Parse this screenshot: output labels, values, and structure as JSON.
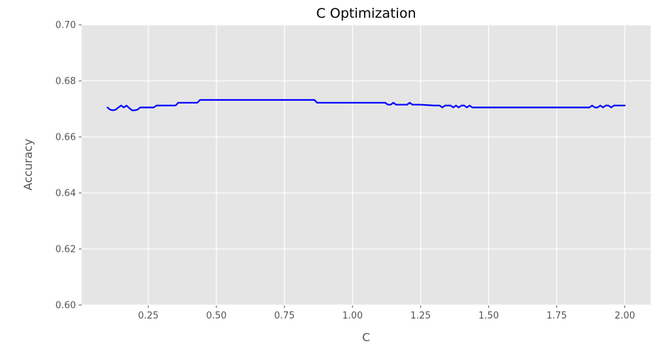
{
  "chart_data": {
    "type": "line",
    "title": "C Optimization",
    "xlabel": "C",
    "ylabel": "Accuracy",
    "xlim": [
      0.005,
      2.095
    ],
    "ylim": [
      0.6,
      0.7
    ],
    "xticks": [
      "0.25",
      "0.50",
      "0.75",
      "1.00",
      "1.25",
      "1.50",
      "1.75",
      "2.00"
    ],
    "yticks": [
      "0.60",
      "0.62",
      "0.64",
      "0.66",
      "0.68",
      "0.70"
    ],
    "grid": true,
    "background": "#e5e5e5",
    "grid_color": "#ffffff",
    "series": [
      {
        "color": "#0000ff",
        "x": [
          0.1,
          0.11,
          0.12,
          0.13,
          0.14,
          0.15,
          0.16,
          0.17,
          0.18,
          0.19,
          0.2,
          0.21,
          0.22,
          0.23,
          0.24,
          0.25,
          0.26,
          0.27,
          0.28,
          0.29,
          0.3,
          0.32,
          0.34,
          0.35,
          0.36,
          0.38,
          0.4,
          0.42,
          0.43,
          0.44,
          0.5,
          0.6,
          0.7,
          0.8,
          0.86,
          0.87,
          0.9,
          1.0,
          1.1,
          1.12,
          1.13,
          1.14,
          1.15,
          1.16,
          1.17,
          1.18,
          1.19,
          1.2,
          1.21,
          1.22,
          1.25,
          1.3,
          1.32,
          1.33,
          1.34,
          1.35,
          1.36,
          1.37,
          1.38,
          1.39,
          1.4,
          1.41,
          1.42,
          1.43,
          1.44,
          1.45,
          1.5,
          1.6,
          1.7,
          1.8,
          1.87,
          1.88,
          1.89,
          1.9,
          1.91,
          1.92,
          1.93,
          1.94,
          1.95,
          1.96,
          1.97,
          1.98,
          1.99,
          2.0
        ],
        "y": [
          0.6705,
          0.6697,
          0.6695,
          0.6697,
          0.6705,
          0.6712,
          0.6705,
          0.6712,
          0.6703,
          0.6695,
          0.6695,
          0.6697,
          0.6705,
          0.6705,
          0.6705,
          0.6705,
          0.6705,
          0.6705,
          0.6712,
          0.6712,
          0.6712,
          0.6712,
          0.6712,
          0.6712,
          0.6722,
          0.6722,
          0.6722,
          0.6722,
          0.6722,
          0.6732,
          0.6732,
          0.6732,
          0.6732,
          0.6732,
          0.6732,
          0.6722,
          0.6722,
          0.6722,
          0.6722,
          0.6722,
          0.6715,
          0.6715,
          0.6722,
          0.6715,
          0.6715,
          0.6715,
          0.6715,
          0.6715,
          0.6722,
          0.6715,
          0.6715,
          0.6712,
          0.6712,
          0.6705,
          0.6712,
          0.6712,
          0.6712,
          0.6705,
          0.6712,
          0.6705,
          0.6712,
          0.6712,
          0.6705,
          0.6712,
          0.6705,
          0.6705,
          0.6705,
          0.6705,
          0.6705,
          0.6705,
          0.6705,
          0.6712,
          0.6705,
          0.6705,
          0.6712,
          0.6705,
          0.6712,
          0.6712,
          0.6705,
          0.6712,
          0.6712,
          0.6712,
          0.6712,
          0.6712
        ]
      }
    ]
  }
}
